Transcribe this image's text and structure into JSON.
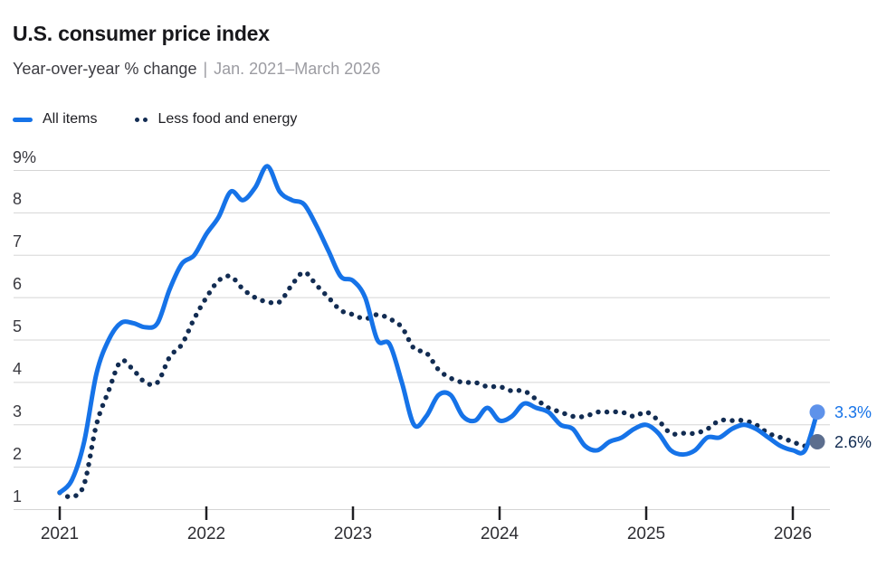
{
  "header": {
    "title": "U.S. consumer price index",
    "subtitle_main": "Year-over-year % change",
    "subtitle_separator": "|",
    "subtitle_range": "Jan. 2021–March 2026"
  },
  "chart_data": {
    "type": "line",
    "title": "U.S. consumer price index",
    "subtitle": "Year-over-year % change | Jan. 2021–March 2026",
    "x_unit": "month",
    "x_start": "2021-01",
    "x_end": "2026-03",
    "x_tick_labels": [
      "2021",
      "2022",
      "2023",
      "2024",
      "2025",
      "2026"
    ],
    "y_tick_labels": [
      "9%",
      "8",
      "7",
      "6",
      "5",
      "4",
      "3",
      "2",
      "1"
    ],
    "y_tick_values": [
      9,
      8,
      7,
      6,
      5,
      4,
      3,
      2,
      1
    ],
    "ylim": [
      1,
      9
    ],
    "grid": "horizontal",
    "gridline_color": "#D5D5D5",
    "tick_color": "#1F1F23",
    "legend_position": "top-left",
    "series": [
      {
        "name": "All items",
        "style": "solid",
        "color": "#1673E8",
        "end_label": "3.3%",
        "end_marker_color": "#5E92EA",
        "values": [
          1.4,
          1.7,
          2.6,
          4.2,
          5.0,
          5.4,
          5.4,
          5.3,
          5.4,
          6.2,
          6.8,
          7.0,
          7.5,
          7.9,
          8.5,
          8.3,
          8.6,
          9.1,
          8.5,
          8.3,
          8.2,
          7.7,
          7.1,
          6.5,
          6.4,
          6.0,
          5.0,
          4.9,
          4.0,
          3.0,
          3.2,
          3.7,
          3.7,
          3.2,
          3.1,
          3.4,
          3.1,
          3.2,
          3.5,
          3.4,
          3.3,
          3.0,
          2.9,
          2.5,
          2.4,
          2.6,
          2.7,
          2.9,
          3.0,
          2.8,
          2.4,
          2.3,
          2.4,
          2.7,
          2.7,
          2.9,
          3.0,
          2.9,
          2.7,
          2.5,
          2.4,
          2.4,
          3.3
        ]
      },
      {
        "name": "Less food and energy",
        "style": "dotted",
        "color": "#122C52",
        "end_label": "2.6%",
        "end_marker_color": "#5C6E8E",
        "values": [
          1.4,
          1.3,
          1.6,
          3.0,
          3.8,
          4.5,
          4.3,
          4.0,
          4.0,
          4.6,
          4.9,
          5.5,
          6.0,
          6.4,
          6.5,
          6.2,
          6.0,
          5.9,
          5.9,
          6.3,
          6.6,
          6.3,
          6.0,
          5.7,
          5.6,
          5.5,
          5.6,
          5.5,
          5.3,
          4.8,
          4.7,
          4.3,
          4.1,
          4.0,
          4.0,
          3.9,
          3.9,
          3.8,
          3.8,
          3.6,
          3.4,
          3.3,
          3.2,
          3.2,
          3.3,
          3.3,
          3.3,
          3.2,
          3.3,
          3.1,
          2.8,
          2.8,
          2.8,
          2.9,
          3.1,
          3.1,
          3.1,
          3.0,
          2.8,
          2.7,
          2.6,
          2.5,
          2.6
        ]
      }
    ]
  }
}
